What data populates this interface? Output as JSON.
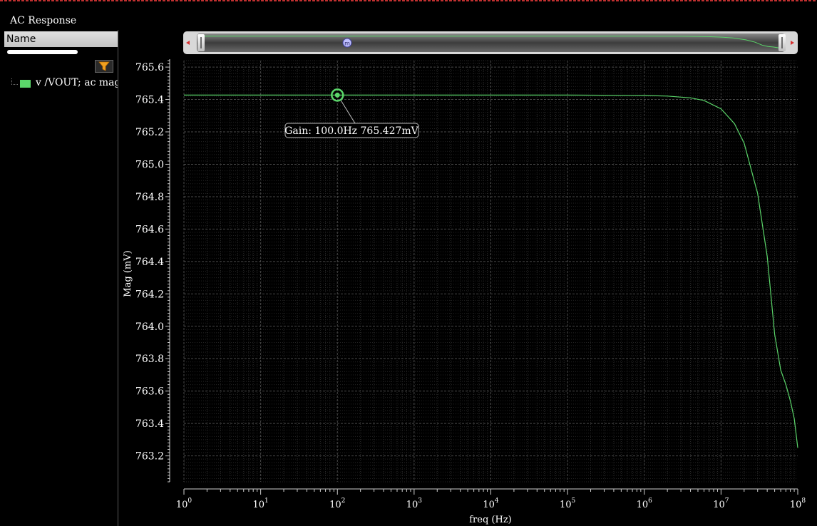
{
  "window": {
    "title": "AC Response"
  },
  "left_panel": {
    "header": "Name",
    "legend": [
      {
        "label": "v /VOUT; ac mag",
        "color": "#5bd66a"
      }
    ]
  },
  "icons": {
    "filter": "filter-funnel-icon",
    "scroll_left": "triangle-left-icon",
    "scroll_right": "triangle-right-icon",
    "marker": "marker-m-icon"
  },
  "colors": {
    "trace": "#5bd66a",
    "background": "#000000",
    "grid": "#3a3a3a"
  },
  "marker": {
    "label": "Gain: 100.0Hz 765.427mV",
    "x": 100,
    "y": 765.427,
    "badge": "m"
  },
  "chart_data": {
    "type": "line",
    "title": "",
    "xlabel": "freq (Hz)",
    "ylabel": "Mag (mV)",
    "xscale": "log",
    "xlim": [
      1,
      100000000
    ],
    "ylim": [
      763.04,
      765.64
    ],
    "grid": true,
    "x_ticks": [
      1,
      10,
      100,
      1000,
      10000,
      100000,
      1000000,
      10000000,
      100000000
    ],
    "x_tick_labels": [
      {
        "base": "10",
        "exp": "0"
      },
      {
        "base": "10",
        "exp": "1"
      },
      {
        "base": "10",
        "exp": "2"
      },
      {
        "base": "10",
        "exp": "3"
      },
      {
        "base": "10",
        "exp": "4"
      },
      {
        "base": "10",
        "exp": "5"
      },
      {
        "base": "10",
        "exp": "6"
      },
      {
        "base": "10",
        "exp": "7"
      },
      {
        "base": "10",
        "exp": "8"
      }
    ],
    "y_ticks": [
      765.6,
      765.4,
      765.2,
      765.0,
      764.8,
      764.6,
      764.4,
      764.2,
      764.0,
      763.8,
      763.6,
      763.4,
      763.2
    ],
    "y_tick_labels": [
      "765.6",
      "765.4",
      "765.2",
      "765.0",
      "764.8",
      "764.6",
      "764.4",
      "764.2",
      "764.0",
      "763.8",
      "763.6",
      "763.4",
      "763.2"
    ],
    "series": [
      {
        "name": "v /VOUT; ac mag",
        "x": [
          1,
          10,
          100,
          1000,
          10000,
          100000,
          1000000,
          2000000,
          4000000,
          6000000,
          10000000,
          15000000,
          20000000,
          30000000,
          40000000,
          50000000,
          60000000,
          70000000,
          80000000,
          90000000,
          100000000
        ],
        "y": [
          765.427,
          765.427,
          765.427,
          765.427,
          765.427,
          765.427,
          765.425,
          765.421,
          765.41,
          765.394,
          765.342,
          765.25,
          765.13,
          764.82,
          764.43,
          763.95,
          763.73,
          763.64,
          763.54,
          763.43,
          763.25
        ]
      }
    ]
  }
}
